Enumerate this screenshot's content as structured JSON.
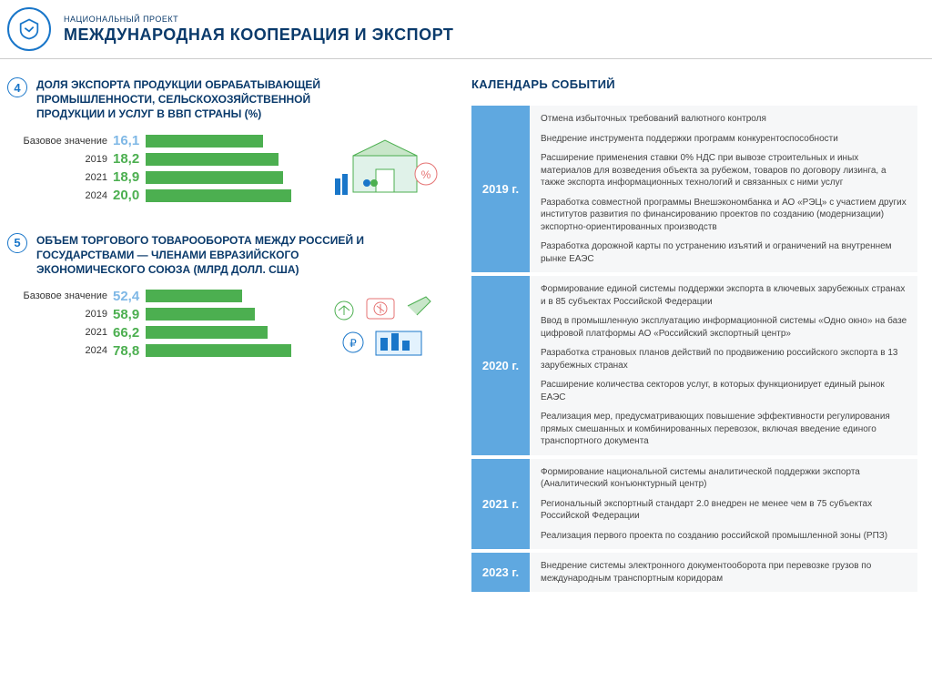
{
  "header": {
    "subtitle": "НАЦИОНАЛЬНЫЙ ПРОЕКТ",
    "title": "МЕЖДУНАРОДНАЯ КООПЕРАЦИЯ И ЭКСПОРТ"
  },
  "colors": {
    "primary_text": "#0a3a6b",
    "accent": "#1976c9",
    "bar_fill": "#4caf50",
    "value_base": "#7fb8e6",
    "value_year": "#4caf50",
    "cal_year_bg": "#5fa8e0",
    "cal_items_bg": "#f6f7f8"
  },
  "indicators": [
    {
      "num": "4",
      "title": "ДОЛЯ ЭКСПОРТА ПРОДУКЦИИ ОБРАБАТЫВАЮЩЕЙ ПРОМЫШЛЕННОСТИ, СЕЛЬСКОХОЗЯЙСТВЕННОЙ ПРОДУКЦИИ И УСЛУГ В ВВП СТРАНЫ (%)",
      "max": 20.0,
      "rows": [
        {
          "label": "Базовое значение",
          "value": "16,1",
          "num": 16.1,
          "is_base": true
        },
        {
          "label": "2019",
          "value": "18,2",
          "num": 18.2,
          "is_base": false
        },
        {
          "label": "2021",
          "value": "18,9",
          "num": 18.9,
          "is_base": false
        },
        {
          "label": "2024",
          "value": "20,0",
          "num": 20.0,
          "is_base": false
        }
      ],
      "illus": "factory"
    },
    {
      "num": "5",
      "title": "ОБЪЕМ ТОРГОВОГО ТОВАРООБОРОТА МЕЖДУ РОССИЕЙ И ГОСУДАРСТВАМИ — ЧЛЕНАМИ ЕВРАЗИЙСКОГО ЭКОНОМИЧЕСКОГО СОЮЗА (МЛРД ДОЛЛ. США)",
      "max": 78.8,
      "rows": [
        {
          "label": "Базовое значение",
          "value": "52,4",
          "num": 52.4,
          "is_base": true
        },
        {
          "label": "2019",
          "value": "58,9",
          "num": 58.9,
          "is_base": false
        },
        {
          "label": "2021",
          "value": "66,2",
          "num": 66.2,
          "is_base": false
        },
        {
          "label": "2024",
          "value": "78,8",
          "num": 78.8,
          "is_base": false
        }
      ],
      "illus": "trade"
    }
  ],
  "calendar": {
    "title": "КАЛЕНДАРЬ СОБЫТИЙ",
    "years": [
      {
        "year": "2019 г.",
        "items": [
          "Отмена избыточных требований валютного контроля",
          "Внедрение инструмента поддержки программ конкурентоспособности",
          "Расширение применения ставки 0% НДС при вывозе строительных и иных материалов для возведения объекта за рубежом, товаров по договору лизинга, а также экспорта информационных технологий и связанных с ними услуг",
          "Разработка совместной программы Внешэкономбанка и АО «РЭЦ» с участием других институтов развития по финансированию проектов по созданию (модернизации) экспортно-ориентированных производств",
          "Разработка дорожной карты по устранению изъятий и ограничений на внутреннем рынке ЕАЭС"
        ]
      },
      {
        "year": "2020 г.",
        "items": [
          "Формирование единой системы поддержки экспорта в ключевых зарубежных странах и в 85 субъектах Российской Федерации",
          "Ввод в промышленную эксплуатацию информационной системы «Одно окно» на базе цифровой платформы АО «Российский экспортный центр»",
          "Разработка страновых планов действий по продвижению российского экспорта в 13 зарубежных странах",
          "Расширение количества секторов услуг, в которых функционирует единый рынок ЕАЭС",
          "Реализация мер, предусматривающих повышение эффективности регулирования прямых смешанных и комбинированных перевозок, включая введение единого транспортного документа"
        ]
      },
      {
        "year": "2021 г.",
        "items": [
          "Формирование национальной системы аналитической поддержки экспорта (Аналитический конъюнктурный центр)",
          "Региональный экспортный стандарт 2.0 внедрен не менее чем в 75 субъектах Российской Федерации",
          "Реализация первого проекта по созданию российской промышленной зоны (РПЗ)"
        ]
      },
      {
        "year": "2023 г.",
        "items": [
          "Внедрение системы электронного документооборота при перевозке грузов по международным транспортным коридорам"
        ]
      }
    ]
  }
}
